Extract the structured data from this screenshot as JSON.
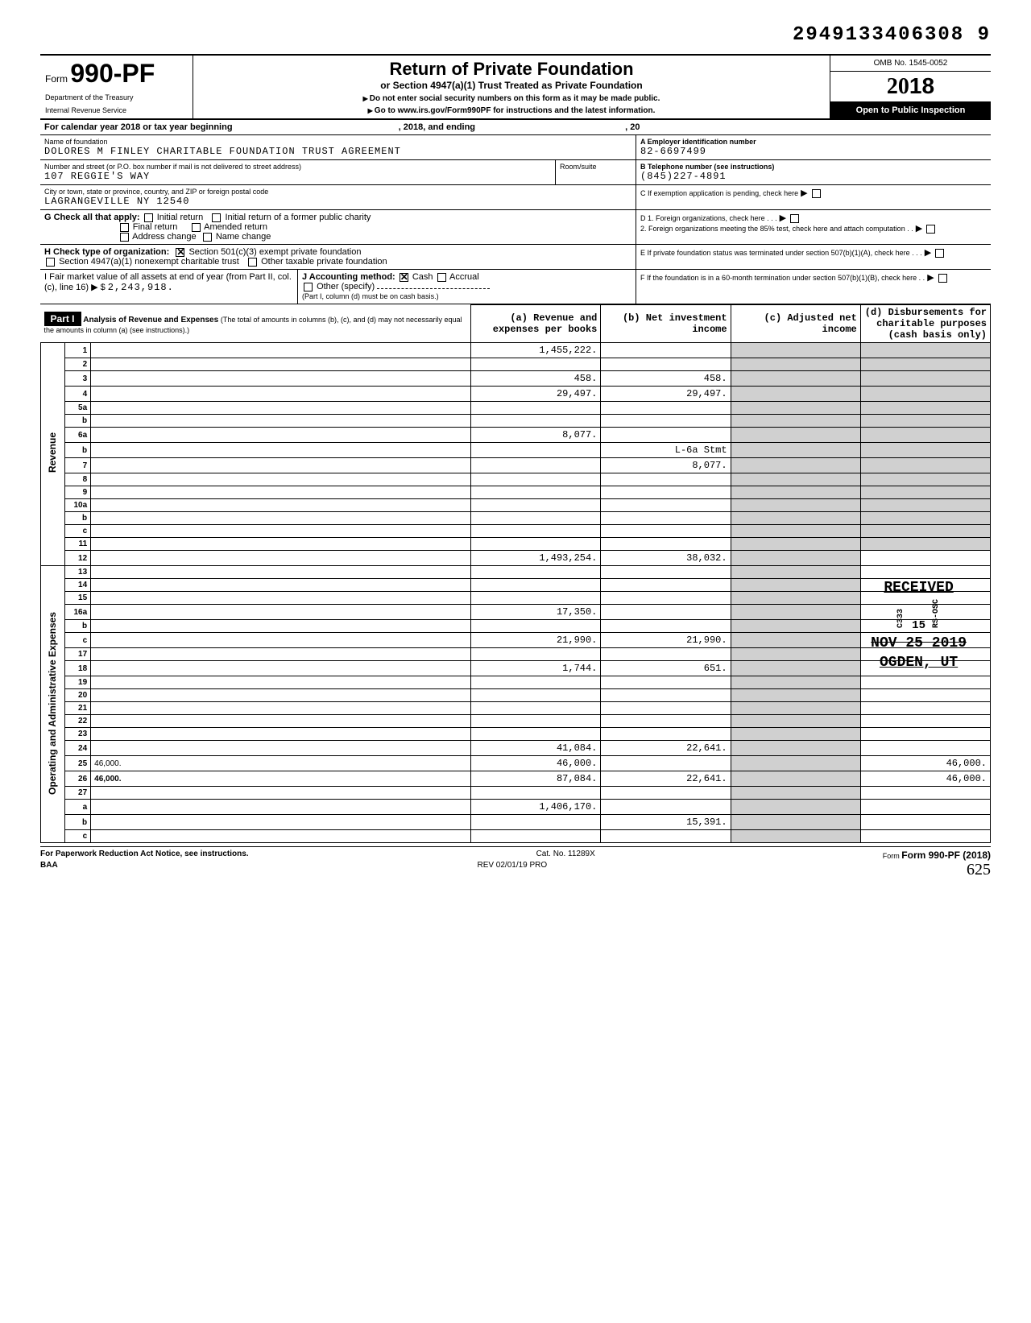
{
  "dln": "2949133406308  9",
  "header": {
    "form_label": "Form",
    "form_number": "990-PF",
    "dept1": "Department of the Treasury",
    "dept2": "Internal Revenue Service",
    "title": "Return of Private Foundation",
    "subtitle": "or Section 4947(a)(1) Trust Treated as Private Foundation",
    "warn": "Do not enter social security numbers on this form as it may be made public.",
    "goto": "Go to www.irs.gov/Form990PF for instructions and the latest information.",
    "omb": "OMB No. 1545-0052",
    "year_prefix": "20",
    "year_suffix": "18",
    "inspect": "Open to Public Inspection"
  },
  "cal_line": {
    "pre": "For calendar year 2018 or tax year beginning",
    "mid": ", 2018, and ending",
    "end": ", 20"
  },
  "idblock": {
    "name_lbl": "Name of foundation",
    "name": "DOLORES M FINLEY CHARITABLE FOUNDATION TRUST AGREEMENT",
    "addr_lbl": "Number and street (or P.O. box number if mail is not delivered to street address)",
    "room_lbl": "Room/suite",
    "addr": "107 REGGIE'S WAY",
    "city_lbl": "City or town, state or province, country, and ZIP or foreign postal code",
    "city": "LAGRANGEVILLE NY 12540",
    "a_lbl": "A  Employer identification number",
    "ein": "82-6697499",
    "b_lbl": "B  Telephone number (see instructions)",
    "phone": "(845)227-4891",
    "c_lbl": "C  If exemption application is pending, check here",
    "d1_lbl": "D 1. Foreign organizations, check here . . .",
    "d2_lbl": "2. Foreign organizations meeting the 85% test, check here and attach computation . .",
    "e_lbl": "E  If private foundation status was terminated under section 507(b)(1)(A), check here . . .",
    "f_lbl": "F  If the foundation is in a 60-month termination under section 507(b)(1)(B), check here . .",
    "g_lbl": "G  Check all that apply:",
    "g_opts": [
      "Initial return",
      "Final return",
      "Address change",
      "Initial return of a former public charity",
      "Amended return",
      "Name change"
    ],
    "h_lbl": "H  Check type of organization:",
    "h1": "Section 501(c)(3) exempt private foundation",
    "h2": "Section 4947(a)(1) nonexempt charitable trust",
    "h3": "Other taxable private foundation",
    "i_lbl": "I   Fair market value of all assets at end of year (from Part II, col. (c), line 16)",
    "i_val": "2,243,918.",
    "j_lbl": "J   Accounting method:",
    "j_cash": "Cash",
    "j_accr": "Accrual",
    "j_other": "Other (specify)",
    "j_note": "(Part I, column (d) must be on cash basis.)"
  },
  "part1": {
    "label": "Part I",
    "title": "Analysis of Revenue and Expenses",
    "note": "(The total of amounts in columns (b), (c), and (d) may not necessarily equal the amounts in column (a) (see instructions).)",
    "cols": {
      "a": "(a) Revenue and expenses per books",
      "b": "(b) Net investment income",
      "c": "(c) Adjusted net income",
      "d": "(d) Disbursements for charitable purposes (cash basis only)"
    }
  },
  "side_labels": {
    "rev": "Revenue",
    "opex": "Operating and Administrative Expenses"
  },
  "rows": [
    {
      "n": "1",
      "d": "",
      "a": "1,455,222.",
      "b": "",
      "c": ""
    },
    {
      "n": "2",
      "d": "",
      "a": "",
      "b": "",
      "c": ""
    },
    {
      "n": "3",
      "d": "",
      "a": "458.",
      "b": "458.",
      "c": ""
    },
    {
      "n": "4",
      "d": "",
      "a": "29,497.",
      "b": "29,497.",
      "c": ""
    },
    {
      "n": "5a",
      "d": "",
      "a": "",
      "b": "",
      "c": ""
    },
    {
      "n": "b",
      "d": "",
      "a": "",
      "b": "",
      "c": ""
    },
    {
      "n": "6a",
      "d": "",
      "a": "8,077.",
      "b": "",
      "c": ""
    },
    {
      "n": "b",
      "d": "",
      "a": "",
      "b": "L-6a Stmt",
      "c": ""
    },
    {
      "n": "7",
      "d": "",
      "a": "",
      "b": "8,077.",
      "c": ""
    },
    {
      "n": "8",
      "d": "",
      "a": "",
      "b": "",
      "c": ""
    },
    {
      "n": "9",
      "d": "",
      "a": "",
      "b": "",
      "c": ""
    },
    {
      "n": "10a",
      "d": "",
      "a": "",
      "b": "",
      "c": ""
    },
    {
      "n": "b",
      "d": "",
      "a": "",
      "b": "",
      "c": ""
    },
    {
      "n": "c",
      "d": "",
      "a": "",
      "b": "",
      "c": ""
    },
    {
      "n": "11",
      "d": "",
      "a": "",
      "b": "",
      "c": ""
    },
    {
      "n": "12",
      "d": "",
      "a": "1,493,254.",
      "b": "38,032.",
      "c": "",
      "bold": true
    },
    {
      "n": "13",
      "d": "",
      "a": "",
      "b": "",
      "c": ""
    },
    {
      "n": "14",
      "d": "",
      "a": "",
      "b": "",
      "c": ""
    },
    {
      "n": "15",
      "d": "",
      "a": "",
      "b": "",
      "c": ""
    },
    {
      "n": "16a",
      "d": "",
      "a": "17,350.",
      "b": "",
      "c": ""
    },
    {
      "n": "b",
      "d": "",
      "a": "",
      "b": "",
      "c": ""
    },
    {
      "n": "c",
      "d": "",
      "a": "21,990.",
      "b": "21,990.",
      "c": ""
    },
    {
      "n": "17",
      "d": "",
      "a": "",
      "b": "",
      "c": ""
    },
    {
      "n": "18",
      "d": "",
      "a": "1,744.",
      "b": "651.",
      "c": ""
    },
    {
      "n": "19",
      "d": "",
      "a": "",
      "b": "",
      "c": ""
    },
    {
      "n": "20",
      "d": "",
      "a": "",
      "b": "",
      "c": ""
    },
    {
      "n": "21",
      "d": "",
      "a": "",
      "b": "",
      "c": ""
    },
    {
      "n": "22",
      "d": "",
      "a": "",
      "b": "",
      "c": ""
    },
    {
      "n": "23",
      "d": "",
      "a": "",
      "b": "",
      "c": ""
    },
    {
      "n": "24",
      "d": "",
      "a": "41,084.",
      "b": "22,641.",
      "c": "",
      "bold": true
    },
    {
      "n": "25",
      "d": "46,000.",
      "a": "46,000.",
      "b": "",
      "c": ""
    },
    {
      "n": "26",
      "d": "46,000.",
      "a": "87,084.",
      "b": "22,641.",
      "c": "",
      "bold": true
    },
    {
      "n": "27",
      "d": "",
      "a": "",
      "b": "",
      "c": "",
      "bold": true
    },
    {
      "n": "a",
      "d": "",
      "a": "1,406,170.",
      "b": "",
      "c": "",
      "bold": true
    },
    {
      "n": "b",
      "d": "",
      "a": "",
      "b": "15,391.",
      "c": "",
      "bold": true
    },
    {
      "n": "c",
      "d": "",
      "a": "",
      "b": "",
      "c": "",
      "bold": true
    }
  ],
  "stamps": {
    "received": "RECEIVED",
    "date1": "NOV 25 2019",
    "ogden": "OGDEN, UT",
    "code": "C333",
    "rcode": "RS-OSC",
    "num15": "15"
  },
  "footer": {
    "pra": "For Paperwork Reduction Act Notice, see instructions.",
    "cat": "Cat. No. 11289X",
    "form": "Form 990-PF (2018)",
    "baa": "BAA",
    "rev": "REV 02/01/19 PRO",
    "hand": "625"
  },
  "colors": {
    "black": "#000000",
    "white": "#ffffff",
    "shade": "#d0d0d0"
  }
}
